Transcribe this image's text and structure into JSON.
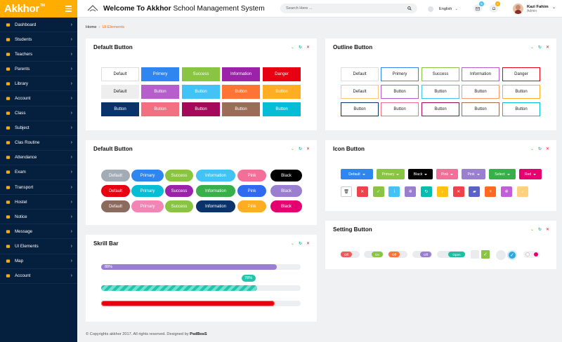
{
  "brand": {
    "name": "Akkhor",
    "tm": "TM"
  },
  "topbar": {
    "welcome_bold": "Welcome To Akkhor",
    "welcome_rest": " School Management System",
    "search_placeholder": "Search Here ...",
    "language": "English",
    "mail_count": "5",
    "bell_count": "8",
    "user_name": "Kazi Fahim",
    "user_role": "Admin"
  },
  "sidebar": {
    "items": [
      {
        "label": "Dashboard",
        "icon": "dashboard-icon"
      },
      {
        "label": "Students",
        "icon": "students-icon"
      },
      {
        "label": "Teachers",
        "icon": "teachers-icon"
      },
      {
        "label": "Parents",
        "icon": "parents-icon"
      },
      {
        "label": "Library",
        "icon": "library-icon"
      },
      {
        "label": "Account",
        "icon": "account-icon"
      },
      {
        "label": "Class",
        "icon": "class-icon"
      },
      {
        "label": "Subject",
        "icon": "subject-icon"
      },
      {
        "label": "Clas Routine",
        "icon": "routine-icon"
      },
      {
        "label": "Attendance",
        "icon": "attendance-icon"
      },
      {
        "label": "Exam",
        "icon": "exam-icon"
      },
      {
        "label": "Transport",
        "icon": "transport-icon"
      },
      {
        "label": "Hostel",
        "icon": "hostel-icon"
      },
      {
        "label": "Notice",
        "icon": "notice-icon"
      },
      {
        "label": "Message",
        "icon": "message-icon"
      },
      {
        "label": "UI Elements",
        "icon": "ui-elements-icon"
      },
      {
        "label": "Map",
        "icon": "map-icon"
      },
      {
        "label": "Account",
        "icon": "account-icon"
      }
    ]
  },
  "breadcrumb": {
    "home": "Home",
    "current": "UI Elements"
  },
  "cards": {
    "default_button": "Default Button",
    "outline_button": "Outline Button",
    "default_button_2": "Default Button",
    "icon_button": "Icon Button",
    "skrill_bar": "Skrill Bar",
    "setting_button": "Setting Button"
  },
  "colors": {
    "sidebar": "#051f3e",
    "brand": "#ffae01",
    "accent": "#ff6600"
  },
  "default_buttons": [
    [
      {
        "label": "Default",
        "bg": "#ffffff",
        "fg": "#222222",
        "border": "#dddddd"
      },
      {
        "label": "Primery",
        "bg": "#2f86f1"
      },
      {
        "label": "Success",
        "bg": "#8ac443"
      },
      {
        "label": "Information",
        "bg": "#9a23a9"
      },
      {
        "label": "Danger",
        "bg": "#e60012"
      }
    ],
    [
      {
        "label": "Default",
        "bg": "#eeeeee",
        "fg": "#222222"
      },
      {
        "label": "Button",
        "bg": "#b55ecc"
      },
      {
        "label": "Button",
        "bg": "#42c2f5"
      },
      {
        "label": "Button",
        "bg": "#ff7336"
      },
      {
        "label": "Button",
        "bg": "#ffae24"
      }
    ],
    [
      {
        "label": "Button",
        "bg": "#0a326b"
      },
      {
        "label": "Button",
        "bg": "#f36f82"
      },
      {
        "label": "Button",
        "bg": "#a5095a"
      },
      {
        "label": "Button",
        "bg": "#9a6d58"
      },
      {
        "label": "Button",
        "bg": "#06bdd6"
      }
    ]
  ],
  "outline_buttons": [
    [
      {
        "label": "Default",
        "c": "#dddddd"
      },
      {
        "label": "Primery",
        "c": "#2f86f1"
      },
      {
        "label": "Success",
        "c": "#8ac443"
      },
      {
        "label": "Information",
        "c": "#b55ecc"
      },
      {
        "label": "Danger",
        "c": "#e60012"
      }
    ],
    [
      {
        "label": "Default",
        "c": "#f7c97a"
      },
      {
        "label": "Button",
        "c": "#b55ecc"
      },
      {
        "label": "Button",
        "c": "#42c2f5"
      },
      {
        "label": "Button",
        "c": "#ff9b6a"
      },
      {
        "label": "Button",
        "c": "#ffae24"
      }
    ],
    [
      {
        "label": "Button",
        "c": "#0a326b"
      },
      {
        "label": "Button",
        "c": "#f36f82"
      },
      {
        "label": "Button",
        "c": "#a5095a"
      },
      {
        "label": "Button",
        "c": "#9a6d58"
      },
      {
        "label": "Button",
        "c": "#06bdd6"
      }
    ]
  ],
  "pill_buttons": [
    [
      {
        "label": "Default",
        "bg": "#a3acb6"
      },
      {
        "label": "Primary",
        "bg": "#2f86f1"
      },
      {
        "label": "Success",
        "bg": "#8ac443"
      },
      {
        "label": "Information",
        "bg": "#42c2f5"
      },
      {
        "label": "Pink",
        "bg": "#f36f9a"
      },
      {
        "label": "Black",
        "bg": "#000000"
      }
    ],
    [
      {
        "label": "Default",
        "bg": "#e60012"
      },
      {
        "label": "Primary",
        "bg": "#06bdd6"
      },
      {
        "label": "Success",
        "bg": "#9a23a9"
      },
      {
        "label": "Information",
        "bg": "#37b04a"
      },
      {
        "label": "Pink",
        "bg": "#2f6af1"
      },
      {
        "label": "Black",
        "bg": "#9a7fd1"
      }
    ],
    [
      {
        "label": "Default",
        "bg": "#8b6b5e"
      },
      {
        "label": "Primary",
        "bg": "#f384b6"
      },
      {
        "label": "Success",
        "bg": "#8ac443"
      },
      {
        "label": "Information",
        "bg": "#0a326b"
      },
      {
        "label": "Pink",
        "bg": "#ffae24"
      },
      {
        "label": "Black",
        "bg": "#e6006f"
      }
    ]
  ],
  "dropdown_buttons": [
    {
      "label": "Default",
      "bg": "#2f86f1"
    },
    {
      "label": "Primary",
      "bg": "#8ac443"
    },
    {
      "label": "Black",
      "bg": "#000000"
    },
    {
      "label": "Pink",
      "bg": "#f36f9a"
    },
    {
      "label": "Pink",
      "bg": "#9a7fd1"
    },
    {
      "label": "Select",
      "bg": "#37b04a"
    },
    {
      "label": "Red",
      "bg": "#e6006f"
    }
  ],
  "icon_buttons": [
    {
      "icon": "trash-icon",
      "bg": "#ffffff",
      "fg": "#333333"
    },
    {
      "icon": "close-icon",
      "bg": "#f0424a"
    },
    {
      "icon": "check-icon",
      "bg": "#8ac443"
    },
    {
      "icon": "info-icon",
      "bg": "#42c2f5"
    },
    {
      "icon": "gear-icon",
      "bg": "#9a7fd1"
    },
    {
      "icon": "refresh-icon",
      "bg": "#06bdb2"
    },
    {
      "icon": "bell-icon",
      "bg": "#ffc20e"
    },
    {
      "icon": "close-icon",
      "bg": "#f0424a"
    },
    {
      "icon": "folder-icon",
      "bg": "#5a62c9"
    },
    {
      "icon": "plus-icon",
      "bg": "#ff6a20"
    },
    {
      "icon": "gear-icon",
      "bg": "#c35edb"
    },
    {
      "icon": "bell-icon",
      "bg": "#ffd080"
    }
  ],
  "toggles": [
    {
      "label": "Off",
      "color": "#f05a5a",
      "side": "left"
    },
    {
      "label": "On",
      "color": "#8ac443",
      "side": "right"
    },
    {
      "label": "Off",
      "color": "#ff7336",
      "side": "left"
    },
    {
      "label": "Off",
      "color": "#9a7fd1",
      "side": "right"
    },
    {
      "label": "Open",
      "color": "#1bc0a2",
      "side": "right"
    }
  ],
  "progress": [
    {
      "label": "88%",
      "value": 88,
      "color": "#9a7fd1"
    },
    {
      "label": "78%",
      "value": 78,
      "color": "#24c4ac",
      "striped": true
    },
    {
      "label": "",
      "value": 87,
      "color": "#e60012"
    }
  ],
  "footer": {
    "text": "© Copyrights akkhor 2017. All rights reserved. Designed by ",
    "designer": "PsdBosS"
  }
}
